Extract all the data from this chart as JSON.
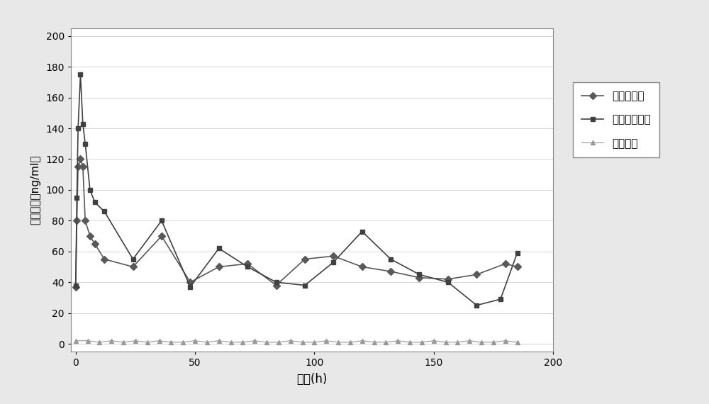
{
  "title": "",
  "xlabel": "时间(h)",
  "ylabel": "血药浓度（ng/ml）",
  "xlim": [
    -2,
    200
  ],
  "ylim": [
    -5,
    205
  ],
  "xticks": [
    0,
    50,
    100,
    150,
    200
  ],
  "yticks": [
    0,
    20,
    40,
    60,
    80,
    100,
    120,
    140,
    160,
    180,
    200
  ],
  "series1_label": "自制微球组",
  "series2_label": "黄体酮注射液",
  "series3_label": "空白基线",
  "series1_x": [
    0,
    0.5,
    1,
    2,
    3,
    4,
    6,
    8,
    12,
    24,
    36,
    48,
    60,
    72,
    84,
    96,
    108,
    120,
    132,
    144,
    156,
    168,
    180,
    185
  ],
  "series1_y": [
    37,
    80,
    115,
    120,
    115,
    80,
    70,
    65,
    55,
    50,
    70,
    40,
    50,
    52,
    38,
    55,
    57,
    50,
    47,
    43,
    42,
    45,
    52,
    50
  ],
  "series2_x": [
    0,
    0.5,
    1,
    2,
    3,
    4,
    6,
    8,
    12,
    24,
    36,
    48,
    60,
    72,
    84,
    96,
    108,
    120,
    132,
    144,
    156,
    168,
    178,
    185
  ],
  "series2_y": [
    38,
    95,
    140,
    175,
    143,
    130,
    100,
    92,
    86,
    55,
    80,
    37,
    62,
    50,
    40,
    38,
    53,
    73,
    55,
    45,
    40,
    25,
    29,
    59
  ],
  "series3_x": [
    0,
    5,
    10,
    15,
    20,
    25,
    30,
    35,
    40,
    45,
    50,
    55,
    60,
    65,
    70,
    75,
    80,
    85,
    90,
    95,
    100,
    105,
    110,
    115,
    120,
    125,
    130,
    135,
    140,
    145,
    150,
    155,
    160,
    165,
    170,
    175,
    180,
    185
  ],
  "series3_y": [
    2,
    2,
    1,
    2,
    1,
    2,
    1,
    2,
    1,
    1,
    2,
    1,
    2,
    1,
    1,
    2,
    1,
    1,
    2,
    1,
    1,
    2,
    1,
    1,
    2,
    1,
    1,
    2,
    1,
    1,
    2,
    1,
    1,
    2,
    1,
    1,
    2,
    1
  ],
  "series1_color": "#595959",
  "series2_color": "#404040",
  "series3_color": "#999999",
  "background_color": "#f5f5f5",
  "plot_bg_color": "#ffffff",
  "grid_color": "#d0d0d0",
  "border_color": "#888888",
  "outer_border_color": "#888888"
}
